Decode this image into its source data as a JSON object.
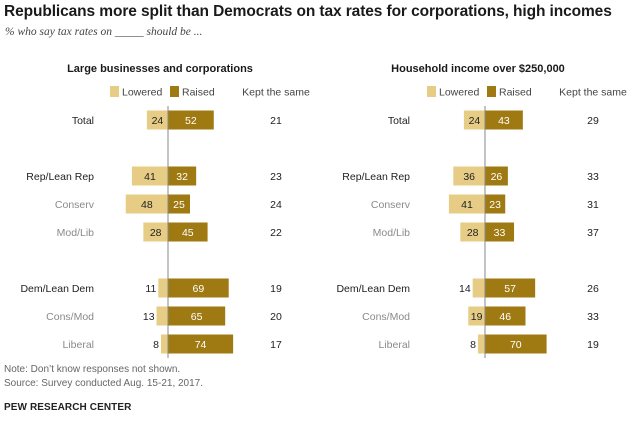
{
  "header": {
    "title": "Republicans more split than Democrats on tax rates for corporations, high incomes",
    "subtitle": "% who say tax rates on _____ should be ..."
  },
  "footer": {
    "note": "Note: Don’t know responses not shown.",
    "source": "Source: Survey conducted Aug. 15-21, 2017.",
    "brand": "PEW RESEARCH CENTER"
  },
  "colors": {
    "lowered": "#e6cc85",
    "raised": "#9f7a12",
    "axis": "#888888",
    "group_label": "#222222",
    "subgroup_label": "#8a8a8a"
  },
  "chart_data": [
    {
      "type": "bar",
      "orientation": "horizontal-diverging",
      "title": "Large businesses and corporations",
      "legend": [
        "Lowered",
        "Raised"
      ],
      "extra_column_label": "Kept the same",
      "categories": [
        "Total",
        "Rep/Lean Rep",
        "Conserv",
        "Mod/Lib",
        "Dem/Lean Dem",
        "Cons/Mod",
        "Liberal"
      ],
      "category_level": [
        "group",
        "group",
        "sub",
        "sub",
        "group",
        "sub",
        "sub"
      ],
      "series": [
        {
          "name": "Lowered",
          "values": [
            24,
            41,
            48,
            28,
            11,
            13,
            8
          ]
        },
        {
          "name": "Raised",
          "values": [
            52,
            32,
            25,
            45,
            69,
            65,
            74
          ]
        },
        {
          "name": "Kept the same",
          "values": [
            21,
            23,
            24,
            22,
            19,
            20,
            17
          ]
        }
      ]
    },
    {
      "type": "bar",
      "orientation": "horizontal-diverging",
      "title": "Household income over $250,000",
      "legend": [
        "Lowered",
        "Raised"
      ],
      "extra_column_label": "Kept the same",
      "categories": [
        "Total",
        "Rep/Lean Rep",
        "Conserv",
        "Mod/Lib",
        "Dem/Lean Dem",
        "Cons/Mod",
        "Liberal"
      ],
      "category_level": [
        "group",
        "group",
        "sub",
        "sub",
        "group",
        "sub",
        "sub"
      ],
      "series": [
        {
          "name": "Lowered",
          "values": [
            24,
            36,
            41,
            28,
            14,
            19,
            8
          ]
        },
        {
          "name": "Raised",
          "values": [
            43,
            26,
            23,
            33,
            57,
            46,
            70
          ]
        },
        {
          "name": "Kept the same",
          "values": [
            29,
            33,
            31,
            37,
            26,
            33,
            19
          ]
        }
      ]
    }
  ]
}
